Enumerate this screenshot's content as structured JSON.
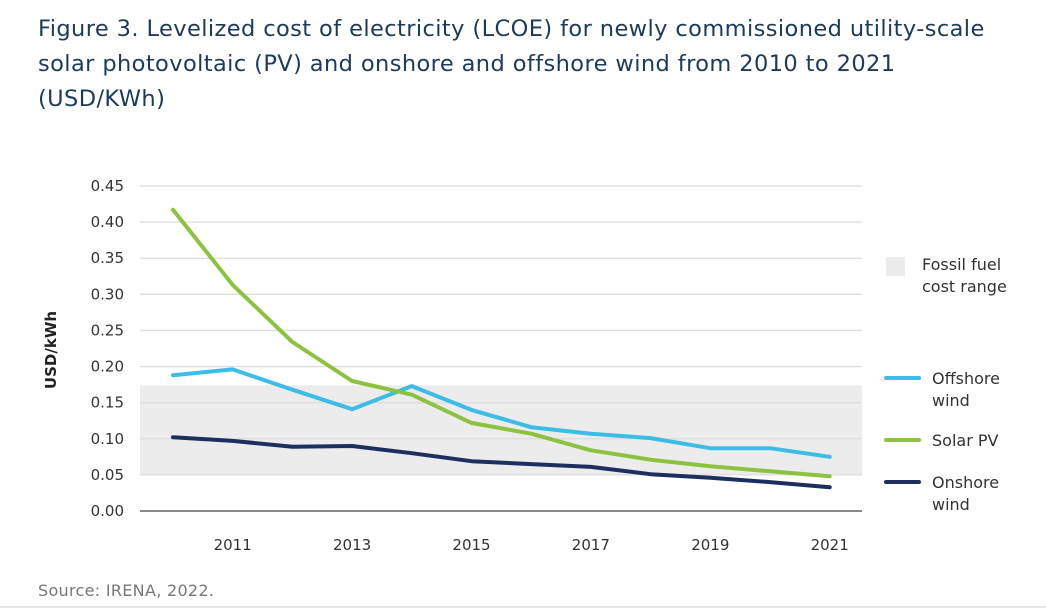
{
  "title": "Figure 3. Levelized cost of electricity (LCOE) for newly commissioned utility-scale solar photovoltaic (PV) and onshore and offshore wind from 2010 to 2021 (USD/KWh)",
  "source": "Source: IRENA, 2022.",
  "chart_data": {
    "type": "line",
    "title": "Levelized cost of electricity (LCOE) for newly commissioned utility-scale solar photovoltaic (PV) and onshore and offshore wind from 2010 to 2021 (USD/KWh)",
    "xlabel": "",
    "ylabel": "USD/kWh",
    "x": [
      2010,
      2011,
      2012,
      2013,
      2014,
      2015,
      2016,
      2017,
      2018,
      2019,
      2020,
      2021
    ],
    "xticks": [
      "2011",
      "2013",
      "2015",
      "2017",
      "2019",
      "2021"
    ],
    "xtick_values": [
      2011,
      2013,
      2015,
      2017,
      2019,
      2021
    ],
    "yticks": [
      "0.00",
      "0.05",
      "0.10",
      "0.15",
      "0.20",
      "0.25",
      "0.30",
      "0.35",
      "0.40",
      "0.45"
    ],
    "ytick_values": [
      0,
      0.05,
      0.1,
      0.15,
      0.2,
      0.25,
      0.3,
      0.35,
      0.4,
      0.45
    ],
    "ylim": [
      0,
      0.45
    ],
    "xlim": [
      2009.0,
      2021.5
    ],
    "grid": true,
    "legend_position": "right",
    "band": {
      "name": "Fossil fuel cost range",
      "label_lines": [
        "Fossil fuel",
        "cost range"
      ],
      "low": 0.05,
      "high": 0.174,
      "color": "#ececec"
    },
    "series": [
      {
        "name": "Offshore wind",
        "label_lines": [
          "Offshore",
          "wind"
        ],
        "color": "#3cbde5",
        "values": [
          0.188,
          0.196,
          0.168,
          0.141,
          0.173,
          0.14,
          0.116,
          0.107,
          0.101,
          0.087,
          0.087,
          0.075
        ]
      },
      {
        "name": "Solar PV",
        "label_lines": [
          "Solar PV"
        ],
        "color": "#8cc23f",
        "values": [
          0.417,
          0.313,
          0.234,
          0.18,
          0.161,
          0.122,
          0.107,
          0.084,
          0.071,
          0.062,
          0.055,
          0.048
        ]
      },
      {
        "name": "Onshore wind",
        "label_lines": [
          "Onshore",
          "wind"
        ],
        "color": "#1c2f5e",
        "values": [
          0.102,
          0.097,
          0.089,
          0.09,
          0.08,
          0.069,
          0.065,
          0.061,
          0.051,
          0.046,
          0.04,
          0.033
        ]
      }
    ]
  }
}
